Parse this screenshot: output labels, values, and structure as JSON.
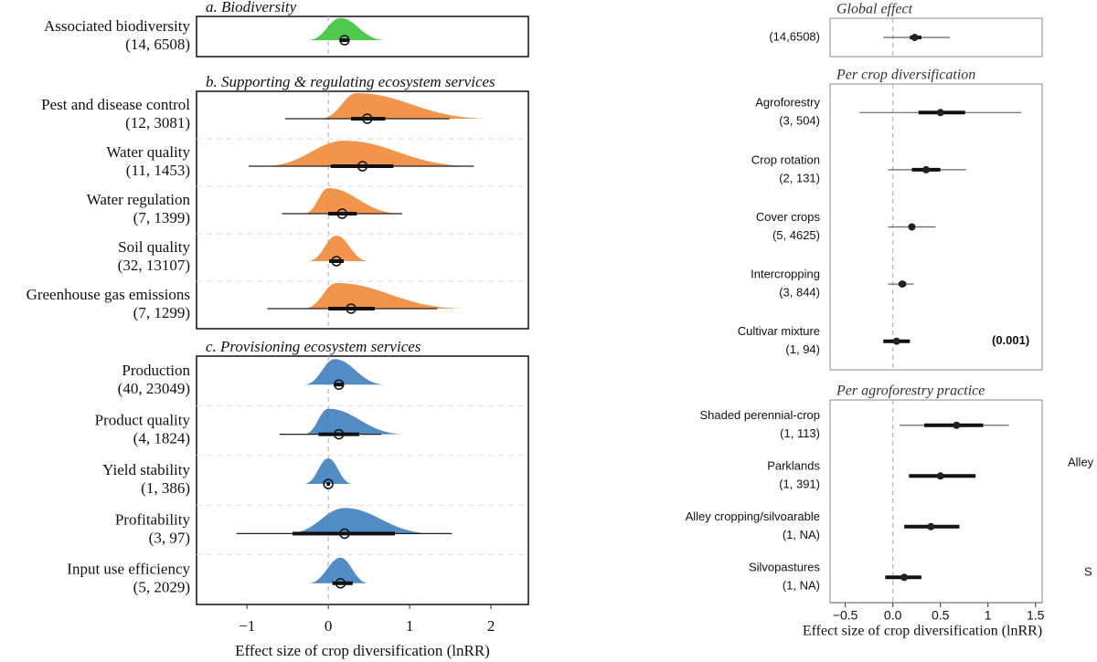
{
  "chart_data": [
    {
      "type": "raincloud",
      "xlabel": "Effect size of crop diversification (lnRR)",
      "xlim": [
        -1.62,
        2.46
      ],
      "xticks": [
        {
          "value": -1,
          "label": "−1"
        },
        0,
        1,
        2
      ],
      "panels": [
        {
          "title": "a. Biodiversity",
          "color": "#3cc43c",
          "rows": [
            {
              "label": "Associated biodiversity",
              "n": "(14, 6508)",
              "estimate": 0.2,
              "ci": [
                0.15,
                0.25
              ],
              "density": {
                "range": [
                  -0.25,
                  0.7
                ],
                "mode": 0.15
              }
            }
          ]
        },
        {
          "title": "b. Supporting & regulating ecosystem services",
          "color": "#f08a3a",
          "rows": [
            {
              "label": "Pest and disease control",
              "n": "(12, 3081)",
              "estimate": 0.48,
              "ci": [
                0.28,
                0.7
              ],
              "pi": [
                -0.53,
                1.49
              ],
              "density": {
                "range": [
                  -0.1,
                  2.0
                ],
                "mode": 0.35
              }
            },
            {
              "label": "Water quality",
              "n": "(11, 1453)",
              "estimate": 0.42,
              "ci": [
                0.03,
                0.8
              ],
              "pi": [
                -0.98,
                1.79
              ],
              "density": {
                "range": [
                  -0.8,
                  1.8
                ],
                "mode": 0.2
              }
            },
            {
              "label": "Water regulation",
              "n": "(7, 1399)",
              "estimate": 0.17,
              "ci": [
                0.0,
                0.35
              ],
              "pi": [
                -0.57,
                0.91
              ],
              "density": {
                "range": [
                  -0.3,
                  0.9
                ],
                "mode": 0.0
              }
            },
            {
              "label": "Soil quality",
              "n": "(32, 13107)",
              "estimate": 0.1,
              "ci": [
                0.01,
                0.19
              ],
              "density": {
                "range": [
                  -0.25,
                  0.5
                ],
                "mode": 0.1
              }
            },
            {
              "label": "Greenhouse gas emissions",
              "n": "(7, 1299)",
              "estimate": 0.28,
              "ci": [
                0.0,
                0.57
              ],
              "pi": [
                -0.75,
                1.34
              ],
              "density": {
                "range": [
                  -0.3,
                  1.7
                ],
                "mode": 0.1
              }
            }
          ]
        },
        {
          "title": "c. Provisioning ecosystem services",
          "color": "#3f7fbf",
          "rows": [
            {
              "label": "Production",
              "n": "(40, 23049)",
              "estimate": 0.13,
              "ci": [
                0.08,
                0.18
              ],
              "density": {
                "range": [
                  -0.3,
                  0.7
                ],
                "mode": 0.08
              }
            },
            {
              "label": "Product quality",
              "n": "(4, 1824)",
              "estimate": 0.13,
              "ci": [
                -0.12,
                0.38
              ],
              "pi": [
                -0.6,
                0.65
              ],
              "density": {
                "range": [
                  -0.3,
                  0.95
                ],
                "mode": 0.0
              }
            },
            {
              "label": "Yield stability",
              "n": "(1, 386)",
              "estimate": 0.0,
              "ci": [
                -0.02,
                0.02
              ],
              "density": {
                "range": [
                  -0.3,
                  0.3
                ],
                "mode": 0.0
              }
            },
            {
              "label": "Profitability",
              "n": "(3, 97)",
              "estimate": 0.2,
              "ci": [
                -0.44,
                0.82
              ],
              "pi": [
                -1.13,
                1.52
              ],
              "density": {
                "range": [
                  -0.5,
                  1.3
                ],
                "mode": 0.2
              }
            },
            {
              "label": "Input use efficiency",
              "n": "(5, 2029)",
              "estimate": 0.15,
              "ci": [
                0.05,
                0.3
              ],
              "density": {
                "range": [
                  -0.25,
                  0.5
                ],
                "mode": 0.15
              }
            }
          ]
        }
      ]
    },
    {
      "type": "forest",
      "xlabel": "Effect size of crop diversification (lnRR)",
      "xlim": [
        -0.66,
        1.57
      ],
      "xticks": [
        {
          "value": -0.5,
          "label": "−0.5"
        },
        {
          "value": 0,
          "label": "0.0"
        },
        0.5,
        1,
        1.5
      ],
      "panels": [
        {
          "title": "Global effect",
          "rows": [
            {
              "n": "(14,6508)",
              "estimate": 0.23,
              "ci": [
                0.18,
                0.3
              ],
              "pi": [
                -0.1,
                0.6
              ]
            }
          ]
        },
        {
          "title": "Per crop diversification",
          "rows": [
            {
              "label": "Agroforestry",
              "n": "(3, 504)",
              "estimate": 0.5,
              "ci": [
                0.27,
                0.76
              ],
              "pi": [
                -0.35,
                1.35
              ]
            },
            {
              "label": "Crop rotation",
              "n": "(2, 131)",
              "estimate": 0.35,
              "ci": [
                0.2,
                0.5
              ],
              "pi": [
                -0.05,
                0.77
              ]
            },
            {
              "label": "Cover crops",
              "n": "(5, 4625)",
              "estimate": 0.2,
              "ci": [
                0.17,
                0.23
              ],
              "pi": [
                -0.05,
                0.45
              ]
            },
            {
              "label": "Intercropping",
              "n": "(3, 844)",
              "estimate": 0.1,
              "ci": [
                0.06,
                0.14
              ],
              "pi": [
                -0.05,
                0.22
              ]
            },
            {
              "label": "Cultivar mixture",
              "n": "(1, 94)",
              "estimate": 0.04,
              "ci": [
                -0.1,
                0.18
              ],
              "annotation": "(0.001)"
            }
          ]
        },
        {
          "title": "Per agroforestry practice",
          "rows": [
            {
              "label": "Shaded perennial-crop",
              "n": "(1, 113)",
              "estimate": 0.67,
              "ci": [
                0.33,
                0.95
              ],
              "pi": [
                0.07,
                1.22
              ]
            },
            {
              "label": "Parklands",
              "n": "(1, 391)",
              "estimate": 0.5,
              "ci": [
                0.17,
                0.87
              ]
            },
            {
              "label": "Alley cropping/silvoarable",
              "n": "(1, NA)",
              "estimate": 0.4,
              "ci": [
                0.12,
                0.7
              ]
            },
            {
              "label": "Silvopastures",
              "n": "(1, NA)",
              "estimate": 0.12,
              "ci": [
                -0.08,
                0.3
              ]
            }
          ]
        }
      ],
      "fragments": [
        "Alley",
        "S"
      ]
    }
  ]
}
